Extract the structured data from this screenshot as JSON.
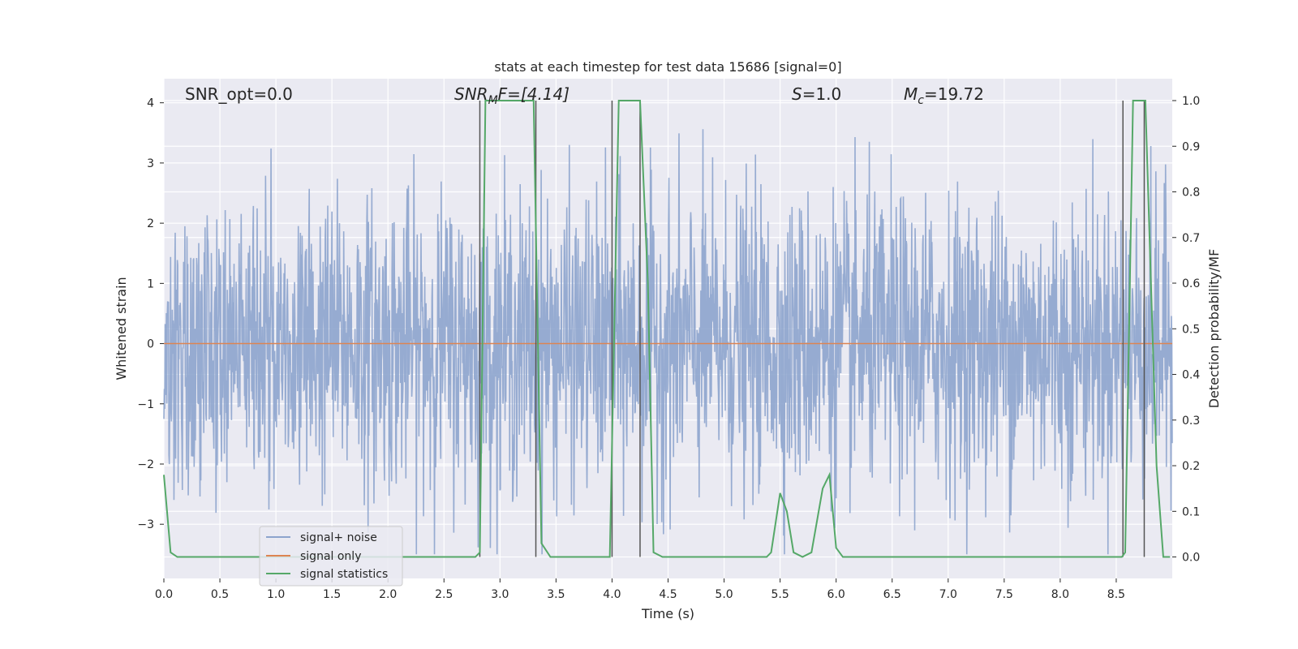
{
  "chart_data": {
    "type": "line",
    "title": "stats at each timestep for test data 15686 [signal=0]",
    "xlabel": "Time (s)",
    "ylabel_left": "Whitened strain",
    "ylabel_right": "Detection probability/MF",
    "xlim": [
      0.0,
      9.0
    ],
    "ylim_left": [
      -3.9,
      4.4
    ],
    "ylim_right": [
      -0.047,
      1.048
    ],
    "x_ticks": [
      0.0,
      0.5,
      1.0,
      1.5,
      2.0,
      2.5,
      3.0,
      3.5,
      4.0,
      4.5,
      5.0,
      5.5,
      6.0,
      6.5,
      7.0,
      7.5,
      8.0,
      8.5
    ],
    "y_ticks_left": [
      -3,
      -2,
      -1,
      0,
      1,
      2,
      3,
      4
    ],
    "y_ticks_right": [
      0.0,
      0.1,
      0.2,
      0.3,
      0.4,
      0.5,
      0.6,
      0.7,
      0.8,
      0.9,
      1.0
    ],
    "annotations": {
      "snr_opt": "SNR_opt=0.0",
      "snr_mf": "SNR",
      "snr_mf_sub": "M",
      "snr_mf_rest": "F=[4.14]",
      "s_var": "S",
      "s_value": "=1.0",
      "mc_var": "M",
      "mc_sub": "c",
      "mc_value": "=19.72"
    },
    "series": [
      {
        "name": "signal+ noise",
        "color": "#8da4cd",
        "noise_band": {
          "typical_amplitude": 1.6,
          "peak_max": 4.0,
          "peak_min": -3.5,
          "duration": 9.0
        }
      },
      {
        "name": "signal only",
        "color": "#dd8452",
        "value": 0.0
      },
      {
        "name": "signal statistics",
        "color": "#55a868",
        "points": [
          [
            0.0,
            0.18
          ],
          [
            0.06,
            0.01
          ],
          [
            0.12,
            0.0
          ],
          [
            2.78,
            0.0
          ],
          [
            2.82,
            0.01
          ],
          [
            2.87,
            1.0
          ],
          [
            3.3,
            1.0
          ],
          [
            3.37,
            0.03
          ],
          [
            3.45,
            0.0
          ],
          [
            3.98,
            0.0
          ],
          [
            4.02,
            0.5
          ],
          [
            4.06,
            1.0
          ],
          [
            4.25,
            1.0
          ],
          [
            4.32,
            0.6
          ],
          [
            4.37,
            0.01
          ],
          [
            4.45,
            0.0
          ],
          [
            5.38,
            0.0
          ],
          [
            5.42,
            0.01
          ],
          [
            5.5,
            0.14
          ],
          [
            5.56,
            0.1
          ],
          [
            5.62,
            0.01
          ],
          [
            5.7,
            0.0
          ],
          [
            5.78,
            0.01
          ],
          [
            5.88,
            0.15
          ],
          [
            5.94,
            0.18
          ],
          [
            6.0,
            0.02
          ],
          [
            6.06,
            0.0
          ],
          [
            8.55,
            0.0
          ],
          [
            8.58,
            0.01
          ],
          [
            8.65,
            1.0
          ],
          [
            8.76,
            1.0
          ],
          [
            8.86,
            0.2
          ],
          [
            8.92,
            0.0
          ],
          [
            8.98,
            0.0
          ]
        ]
      }
    ],
    "vertical_markers": [
      2.82,
      3.32,
      4.0,
      4.25,
      8.56,
      8.75
    ],
    "legend_position": "lower-left",
    "grid": true
  }
}
